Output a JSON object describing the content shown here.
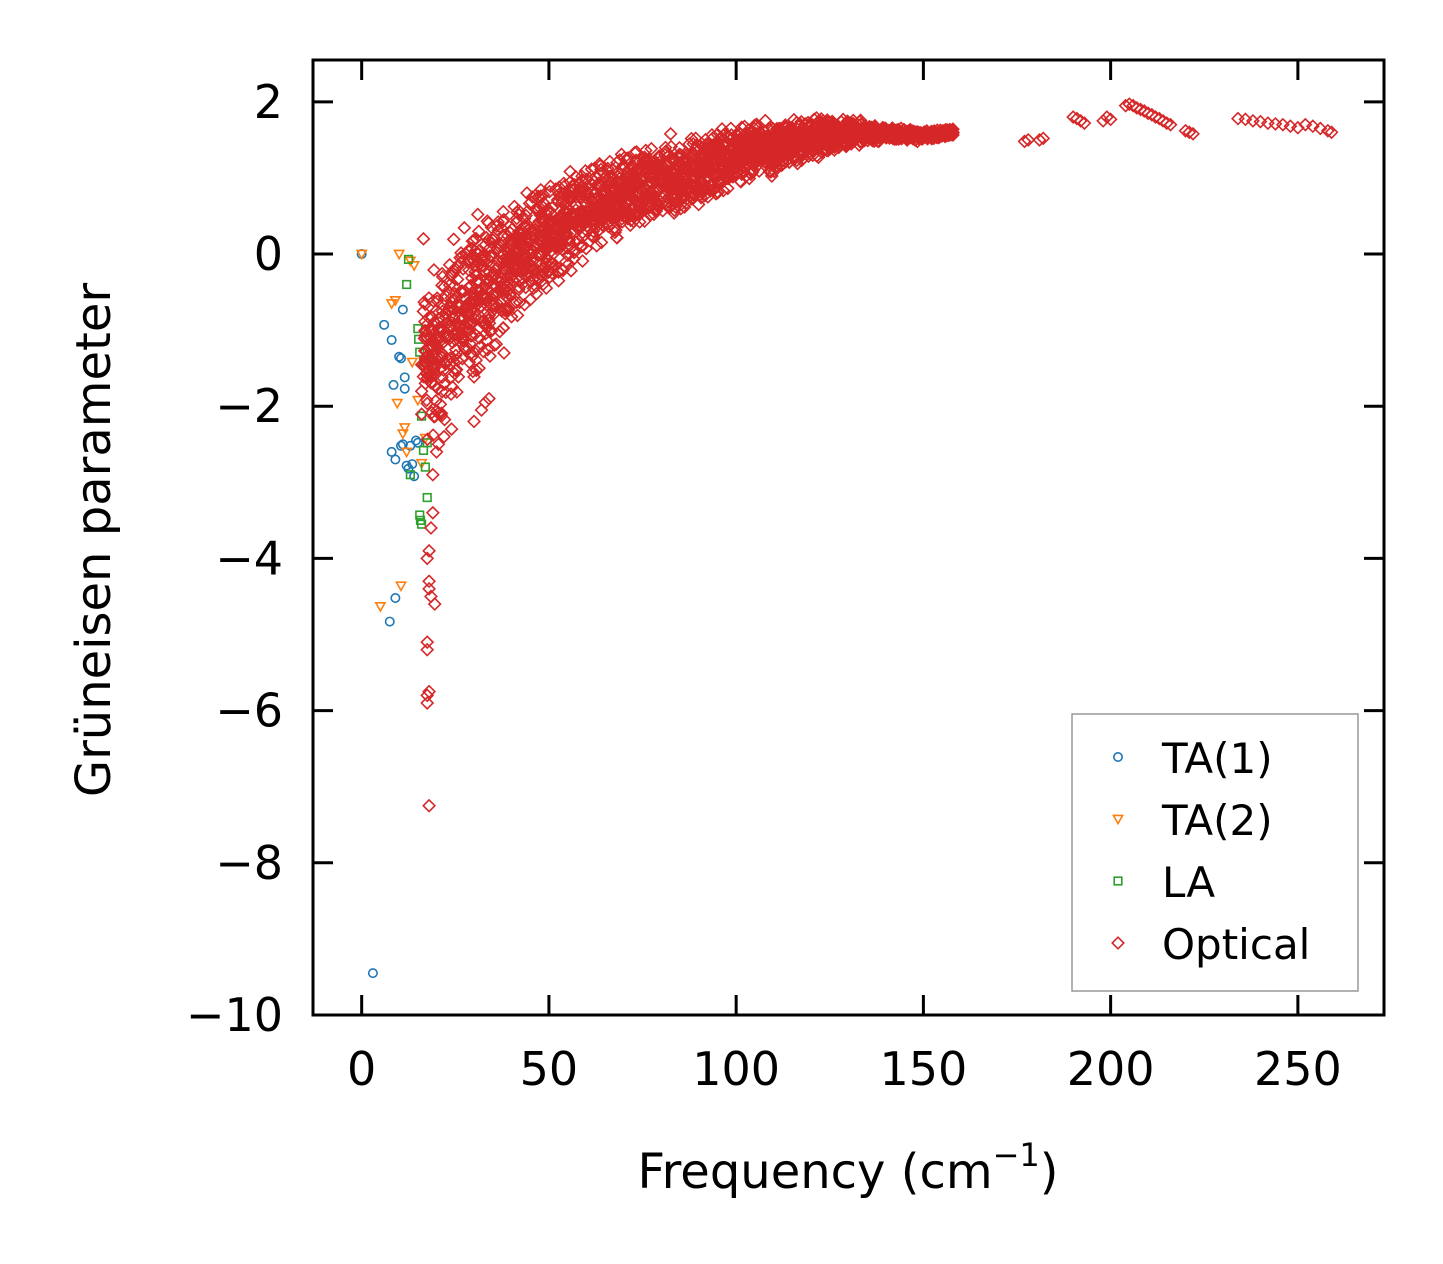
{
  "chart_data": {
    "type": "scatter",
    "xlabel": "Frequency (cm",
    "xlabel_sup": "−1",
    "xlabel_end": ")",
    "ylabel": "Grüneisen parameter",
    "xlim": [
      -13,
      273
    ],
    "ylim": [
      -10,
      2.55
    ],
    "xticks": [
      0,
      50,
      100,
      150,
      200,
      250
    ],
    "yticks": [
      2,
      0,
      -2,
      -4,
      -6,
      -8,
      -10
    ],
    "xtick_labels": [
      "0",
      "50",
      "100",
      "150",
      "200",
      "250"
    ],
    "ytick_labels": [
      "2",
      "0",
      "−2",
      "−4",
      "−6",
      "−8",
      "−10"
    ],
    "legend_position": "bottom-right",
    "series": [
      {
        "name": "TA(1)",
        "marker": "circle",
        "color": "#1f77b4",
        "points": [
          [
            0,
            0
          ],
          [
            3,
            -9.45
          ],
          [
            6,
            -0.93
          ],
          [
            7.5,
            -4.83
          ],
          [
            8,
            -1.13
          ],
          [
            8,
            -2.6
          ],
          [
            8.5,
            -1.72
          ],
          [
            9,
            -2.7
          ],
          [
            9,
            -4.52
          ],
          [
            10,
            -1.35
          ],
          [
            10.5,
            -1.37
          ],
          [
            10.5,
            -2.52
          ],
          [
            11,
            -0.73
          ],
          [
            11,
            -2.5
          ],
          [
            11.5,
            -1.62
          ],
          [
            11.5,
            -1.77
          ],
          [
            12,
            -2.78
          ],
          [
            12.5,
            -2.82
          ],
          [
            13,
            -2.52
          ],
          [
            13.5,
            -2.76
          ],
          [
            14,
            -2.92
          ],
          [
            14.5,
            -2.45
          ],
          [
            15,
            -2.48
          ]
        ]
      },
      {
        "name": "TA(2)",
        "marker": "triangle-down",
        "color": "#ff7f0e",
        "points": [
          [
            0,
            0
          ],
          [
            5,
            -4.63
          ],
          [
            8,
            -0.65
          ],
          [
            9,
            -0.61
          ],
          [
            9.5,
            -1.96
          ],
          [
            10,
            0
          ],
          [
            10.5,
            -4.36
          ],
          [
            11,
            -2.36
          ],
          [
            11.5,
            -2.28
          ],
          [
            12,
            -2.6
          ],
          [
            13,
            -0.09
          ],
          [
            13.5,
            -1.42
          ],
          [
            14,
            -0.15
          ],
          [
            15,
            -1.92
          ],
          [
            16,
            -2.75
          ],
          [
            16.5,
            -1.39
          ],
          [
            17,
            -2.42
          ]
        ]
      },
      {
        "name": "LA",
        "marker": "square",
        "color": "#2ca02c",
        "points": [
          [
            12,
            -0.4
          ],
          [
            12.5,
            -0.07
          ],
          [
            13,
            -2.9
          ],
          [
            15,
            -0.98
          ],
          [
            15.2,
            -1.12
          ],
          [
            15.5,
            -1.29
          ],
          [
            15.5,
            -3.43
          ],
          [
            15.7,
            -3.5
          ],
          [
            16,
            -2.13
          ],
          [
            16,
            -3.55
          ],
          [
            16.5,
            -1.42
          ],
          [
            16.5,
            -2.58
          ],
          [
            17,
            -2.8
          ],
          [
            17.5,
            -3.2
          ],
          [
            17.5,
            -2.48
          ],
          [
            18,
            -1.42
          ]
        ]
      },
      {
        "name": "Optical",
        "marker": "diamond",
        "color": "#d62728",
        "dense_band": [
          [
            16,
            -1.5,
            1.4
          ],
          [
            20,
            -1.2,
            1.3
          ],
          [
            25,
            -0.9,
            1.2
          ],
          [
            30,
            -0.6,
            1.1
          ],
          [
            35,
            -0.35,
            1.0
          ],
          [
            40,
            -0.1,
            0.9
          ],
          [
            45,
            0.1,
            0.8
          ],
          [
            50,
            0.25,
            0.75
          ],
          [
            55,
            0.4,
            0.7
          ],
          [
            60,
            0.55,
            0.65
          ],
          [
            65,
            0.65,
            0.6
          ],
          [
            70,
            0.8,
            0.6
          ],
          [
            75,
            0.9,
            0.55
          ],
          [
            80,
            0.95,
            0.5
          ],
          [
            85,
            1.0,
            0.5
          ],
          [
            90,
            1.1,
            0.5
          ],
          [
            95,
            1.2,
            0.5
          ],
          [
            100,
            1.3,
            0.45
          ],
          [
            105,
            1.35,
            0.45
          ],
          [
            110,
            1.4,
            0.4
          ],
          [
            115,
            1.45,
            0.35
          ],
          [
            120,
            1.5,
            0.3
          ],
          [
            125,
            1.55,
            0.25
          ],
          [
            130,
            1.6,
            0.2
          ],
          [
            135,
            1.6,
            0.15
          ],
          [
            140,
            1.58,
            0.1
          ],
          [
            145,
            1.57,
            0.08
          ],
          [
            150,
            1.55,
            0.08
          ],
          [
            155,
            1.58,
            0.06
          ],
          [
            158,
            1.6,
            0.05
          ]
        ],
        "points": [
          [
            16.5,
            0.2
          ],
          [
            17.5,
            -4.0
          ],
          [
            17.5,
            -5.1
          ],
          [
            17.5,
            -5.2
          ],
          [
            17.5,
            -5.8
          ],
          [
            17.5,
            -5.9
          ],
          [
            18,
            -3.9
          ],
          [
            18,
            -4.3
          ],
          [
            18,
            -4.4
          ],
          [
            18,
            -5.75
          ],
          [
            18,
            -7.25
          ],
          [
            18.5,
            -3.6
          ],
          [
            18.5,
            -4.5
          ],
          [
            19,
            -2.9
          ],
          [
            19,
            -3.4
          ],
          [
            19.5,
            -4.6
          ],
          [
            20,
            -2.6
          ],
          [
            20.5,
            -2.5
          ],
          [
            22,
            -2.4
          ],
          [
            24,
            -2.3
          ],
          [
            30,
            -2.2
          ],
          [
            31,
            0.52
          ],
          [
            32,
            -2.05
          ],
          [
            33,
            -1.95
          ],
          [
            34,
            -1.9
          ],
          [
            38,
            -1.3
          ],
          [
            45,
            -0.6
          ],
          [
            82.5,
            1.58
          ],
          [
            177,
            1.48
          ],
          [
            178,
            1.5
          ],
          [
            181,
            1.5
          ],
          [
            182,
            1.52
          ],
          [
            190,
            1.8
          ],
          [
            191,
            1.78
          ],
          [
            192,
            1.75
          ],
          [
            193,
            1.72
          ],
          [
            198,
            1.75
          ],
          [
            199,
            1.8
          ],
          [
            200,
            1.77
          ],
          [
            204,
            1.95
          ],
          [
            205,
            1.97
          ],
          [
            206,
            1.95
          ],
          [
            207,
            1.92
          ],
          [
            208,
            1.9
          ],
          [
            209,
            1.88
          ],
          [
            210,
            1.85
          ],
          [
            211,
            1.83
          ],
          [
            212,
            1.8
          ],
          [
            213,
            1.78
          ],
          [
            214,
            1.75
          ],
          [
            215,
            1.72
          ],
          [
            216,
            1.7
          ],
          [
            220,
            1.62
          ],
          [
            221,
            1.6
          ],
          [
            222,
            1.58
          ],
          [
            234,
            1.78
          ],
          [
            236,
            1.77
          ],
          [
            238,
            1.75
          ],
          [
            240,
            1.74
          ],
          [
            242,
            1.72
          ],
          [
            244,
            1.71
          ],
          [
            246,
            1.7
          ],
          [
            248,
            1.68
          ],
          [
            250,
            1.66
          ],
          [
            252,
            1.7
          ],
          [
            254,
            1.68
          ],
          [
            256,
            1.65
          ],
          [
            258,
            1.62
          ],
          [
            259,
            1.6
          ]
        ]
      }
    ]
  }
}
